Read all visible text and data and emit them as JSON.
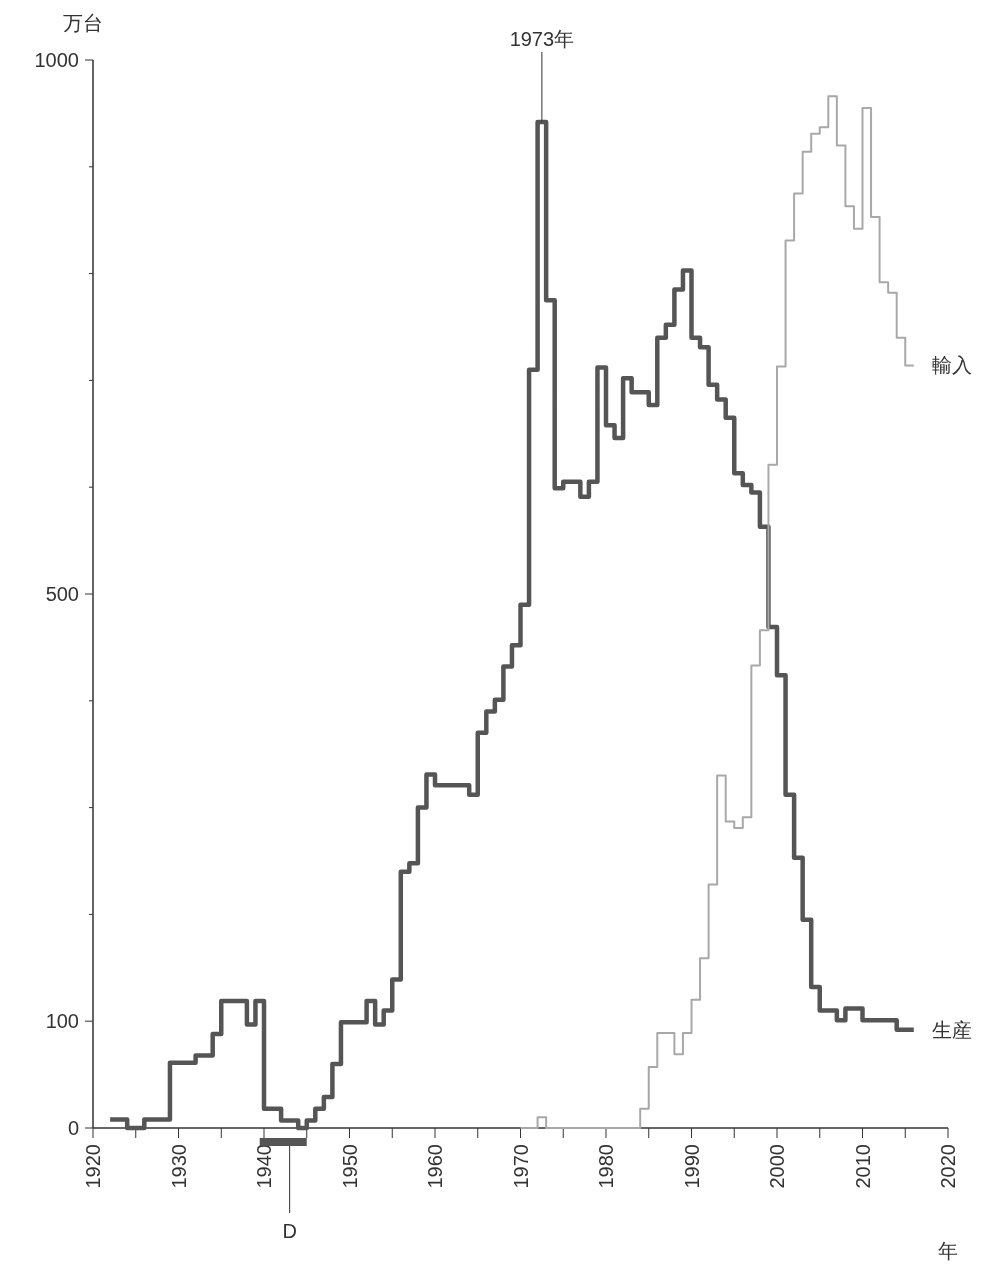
{
  "chart_data": {
    "type": "step",
    "xlabel": "年",
    "ylabel": "万台",
    "xlim": [
      1920,
      2020
    ],
    "ylim": [
      0,
      1000
    ],
    "xticks": [
      1920,
      {
        "value": 1925,
        "label": null
      },
      1930,
      {
        "value": 1935,
        "label": null
      },
      1940,
      {
        "value": 1945,
        "label": null
      },
      1950,
      {
        "value": 1955,
        "label": null
      },
      1960,
      {
        "value": 1965,
        "label": null
      },
      1970,
      {
        "value": 1975,
        "label": null
      },
      1980,
      {
        "value": 1985,
        "label": null
      },
      1990,
      {
        "value": 1995,
        "label": null
      },
      2000,
      {
        "value": 2005,
        "label": null
      },
      2010,
      {
        "value": 2015,
        "label": null
      },
      2020
    ],
    "yticks": [
      0,
      100,
      {
        "value": 200,
        "label": null
      },
      {
        "value": 300,
        "label": null
      },
      {
        "value": 400,
        "label": null
      },
      500,
      {
        "value": 600,
        "label": null
      },
      {
        "value": 700,
        "label": null
      },
      {
        "value": 800,
        "label": null
      },
      {
        "value": 900,
        "label": null
      },
      1000
    ],
    "grid": false,
    "series": [
      {
        "name": "生産",
        "color": "#555555",
        "x": [
          1922,
          1923,
          1924,
          1925,
          1926,
          1927,
          1928,
          1929,
          1930,
          1931,
          1932,
          1933,
          1934,
          1935,
          1936,
          1937,
          1938,
          1939,
          1940,
          1941,
          1942,
          1943,
          1944,
          1945,
          1946,
          1947,
          1948,
          1949,
          1950,
          1951,
          1952,
          1953,
          1954,
          1955,
          1956,
          1957,
          1958,
          1959,
          1960,
          1961,
          1962,
          1963,
          1964,
          1965,
          1966,
          1967,
          1968,
          1969,
          1970,
          1971,
          1972,
          1973,
          1974,
          1975,
          1976,
          1977,
          1978,
          1979,
          1980,
          1981,
          1982,
          1983,
          1984,
          1985,
          1986,
          1987,
          1988,
          1989,
          1990,
          1991,
          1992,
          1993,
          1994,
          1995,
          1996,
          1997,
          1998,
          1999,
          2000,
          2001,
          2002,
          2003,
          2004,
          2005,
          2006,
          2007,
          2008,
          2009,
          2010,
          2011,
          2012,
          2013,
          2014,
          2015,
          2016
        ],
        "values": [
          8,
          8,
          8,
          0,
          0,
          8,
          8,
          8,
          61,
          61,
          61,
          68,
          68,
          88,
          119,
          119,
          119,
          97,
          119,
          18,
          18,
          7,
          7,
          0,
          7,
          18,
          29,
          60,
          99,
          99,
          99,
          119,
          97,
          110,
          139,
          240,
          248,
          300,
          331,
          321,
          321,
          321,
          321,
          312,
          370,
          390,
          401,
          432,
          452,
          490,
          710,
          942,
          775,
          599,
          605,
          605,
          591,
          605,
          712,
          658,
          646,
          702,
          689,
          689,
          677,
          740,
          752,
          785,
          803,
          740,
          731,
          696,
          682,
          665,
          613,
          602,
          595,
          563,
          469,
          424,
          312,
          253,
          195,
          132,
          110,
          110,
          101,
          112,
          112,
          101,
          101,
          101,
          101,
          92,
          92
        ]
      },
      {
        "name": "輸入",
        "color": "#a8a8a8",
        "x": [
          1970,
          1971,
          1972,
          1973,
          1974,
          1975,
          1976,
          1977,
          1978,
          1979,
          1980,
          1981,
          1982,
          1983,
          1984,
          1985,
          1986,
          1987,
          1988,
          1989,
          1990,
          1991,
          1992,
          1993,
          1994,
          1995,
          1996,
          1997,
          1998,
          1999,
          2000,
          2001,
          2002,
          2003,
          2004,
          2005,
          2006,
          2007,
          2008,
          2009,
          2010,
          2011,
          2012,
          2013,
          2014,
          2015,
          2016
        ],
        "values": [
          0,
          0,
          0,
          10,
          0,
          0,
          0,
          0,
          0,
          0,
          0,
          0,
          0,
          0,
          0,
          18,
          57,
          89,
          89,
          69,
          89,
          120,
          159,
          228,
          330,
          287,
          281,
          291,
          433,
          466,
          621,
          713,
          831,
          875,
          914,
          931,
          937,
          966,
          920,
          863,
          842,
          955,
          853,
          792,
          782,
          740,
          714
        ]
      }
    ],
    "annotations": [
      {
        "text": "1973年",
        "x": 1973,
        "y": 942
      },
      {
        "text": "D",
        "x": 1943
      }
    ]
  }
}
